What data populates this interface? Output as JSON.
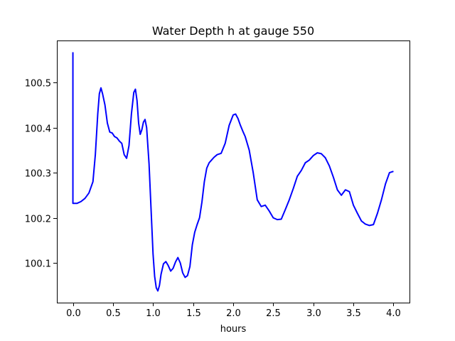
{
  "chart_data": {
    "type": "line",
    "title": "Water Depth h at gauge 550",
    "xlabel": "hours",
    "ylabel": "",
    "xlim": [
      -0.2,
      4.2
    ],
    "ylim": [
      100.012,
      100.593
    ],
    "xticks": [
      0.0,
      0.5,
      1.0,
      1.5,
      2.0,
      2.5,
      3.0,
      3.5,
      4.0
    ],
    "xtick_labels": [
      "0.0",
      "0.5",
      "1.0",
      "1.5",
      "2.0",
      "2.5",
      "3.0",
      "3.5",
      "4.0"
    ],
    "yticks": [
      100.1,
      100.2,
      100.3,
      100.4,
      100.5
    ],
    "ytick_labels": [
      "100.1",
      "100.2",
      "100.3",
      "100.4",
      "100.5"
    ],
    "grid": false,
    "series": [
      {
        "color": "#0000ff",
        "x": [
          0.0,
          0.0,
          0.05,
          0.1,
          0.15,
          0.2,
          0.25,
          0.28,
          0.31,
          0.33,
          0.35,
          0.37,
          0.4,
          0.43,
          0.46,
          0.49,
          0.52,
          0.55,
          0.58,
          0.61,
          0.64,
          0.67,
          0.7,
          0.73,
          0.76,
          0.78,
          0.8,
          0.82,
          0.84,
          0.86,
          0.88,
          0.9,
          0.92,
          0.95,
          0.98,
          1.0,
          1.02,
          1.04,
          1.06,
          1.08,
          1.1,
          1.13,
          1.16,
          1.19,
          1.22,
          1.25,
          1.28,
          1.31,
          1.34,
          1.37,
          1.4,
          1.43,
          1.46,
          1.49,
          1.52,
          1.55,
          1.58,
          1.61,
          1.64,
          1.67,
          1.7,
          1.73,
          1.76,
          1.8,
          1.85,
          1.9,
          1.95,
          2.0,
          2.03,
          2.06,
          2.09,
          2.12,
          2.15,
          2.2,
          2.25,
          2.3,
          2.35,
          2.4,
          2.45,
          2.5,
          2.55,
          2.6,
          2.65,
          2.7,
          2.75,
          2.8,
          2.85,
          2.9,
          2.95,
          3.0,
          3.05,
          3.1,
          3.15,
          3.2,
          3.25,
          3.3,
          3.35,
          3.4,
          3.45,
          3.5,
          3.55,
          3.6,
          3.65,
          3.7,
          3.75,
          3.8,
          3.85,
          3.9,
          3.95,
          4.0
        ],
        "y": [
          100.567,
          100.232,
          100.232,
          100.236,
          100.243,
          100.255,
          100.28,
          100.34,
          100.43,
          100.475,
          100.488,
          100.475,
          100.45,
          100.41,
          100.39,
          100.388,
          100.38,
          100.377,
          100.37,
          100.365,
          100.34,
          100.332,
          100.36,
          100.43,
          100.478,
          100.485,
          100.46,
          100.41,
          100.385,
          100.395,
          100.412,
          100.418,
          100.4,
          100.32,
          100.2,
          100.12,
          100.07,
          100.045,
          100.038,
          100.05,
          100.075,
          100.098,
          100.103,
          100.094,
          100.082,
          100.088,
          100.102,
          100.112,
          100.1,
          100.078,
          100.068,
          100.072,
          100.092,
          100.14,
          100.168,
          100.185,
          100.2,
          100.235,
          100.28,
          100.31,
          100.322,
          100.328,
          100.334,
          100.34,
          100.343,
          100.365,
          100.405,
          100.428,
          100.43,
          100.42,
          100.405,
          100.392,
          100.38,
          100.35,
          100.3,
          100.24,
          100.225,
          100.228,
          100.215,
          100.2,
          100.196,
          100.197,
          100.218,
          100.24,
          100.265,
          100.292,
          100.305,
          100.322,
          100.328,
          100.338,
          100.344,
          100.342,
          100.333,
          100.315,
          100.29,
          100.262,
          100.25,
          100.262,
          100.258,
          100.228,
          100.21,
          100.193,
          100.186,
          100.183,
          100.185,
          100.21,
          100.24,
          100.275,
          100.3,
          100.303
        ]
      }
    ]
  }
}
